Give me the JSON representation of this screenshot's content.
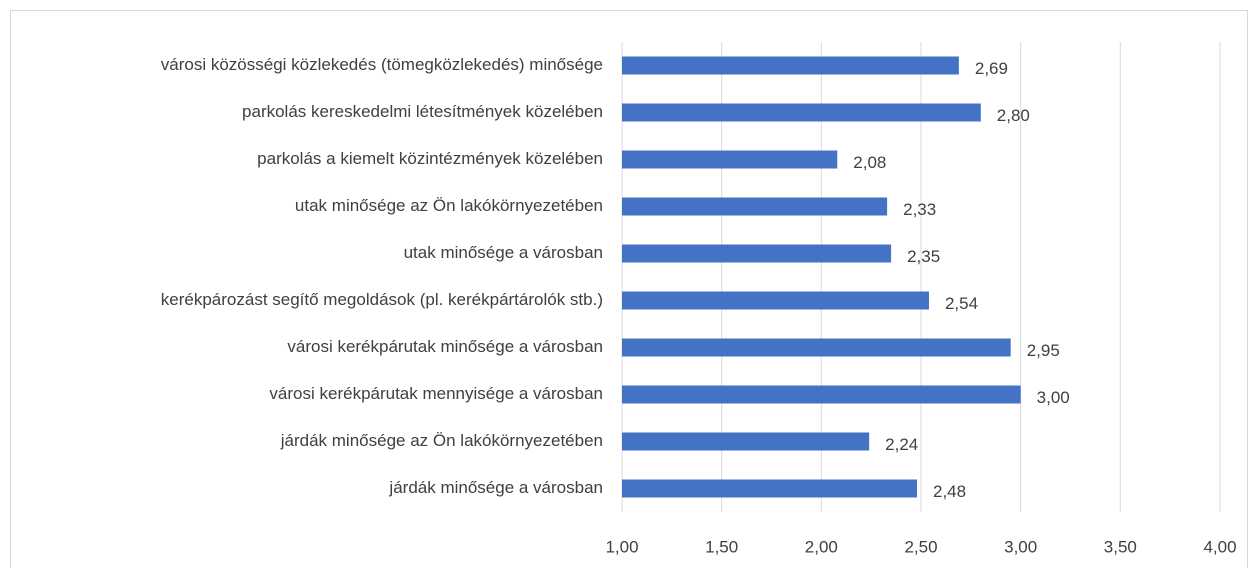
{
  "chart_data": {
    "type": "barh",
    "categories": [
      "városi közösségi közlekedés (tömegközlekedés) minősége",
      "parkolás kereskedelmi létesítmények közelében",
      "parkolás a kiemelt közintézmények közelében",
      "utak minősége az Ön lakókörnyezetében",
      "utak minősége a városban",
      "kerékpározást segítő megoldások (pl. kerékpártárolók stb.)",
      "városi kerékpárutak minősége a városban",
      "városi kerékpárutak mennyisége a városban",
      "járdák minősége az Ön lakókörnyezetében",
      "járdák minősége a városban"
    ],
    "values": [
      2.69,
      2.8,
      2.08,
      2.33,
      2.35,
      2.54,
      2.95,
      3.0,
      2.24,
      2.48
    ],
    "value_labels": [
      "2,69",
      "2,80",
      "2,08",
      "2,33",
      "2,35",
      "2,54",
      "2,95",
      "3,00",
      "2,24",
      "2,48"
    ],
    "color": "#4472c4",
    "xlim": [
      1,
      4
    ],
    "xticks": [
      {
        "value": 1,
        "label": "1,00"
      },
      {
        "value": 1.5,
        "label": "1,50"
      },
      {
        "value": 2,
        "label": "2,00"
      },
      {
        "value": 2.5,
        "label": "2,50"
      },
      {
        "value": 3,
        "label": "3,00"
      },
      {
        "value": 3.5,
        "label": "3,50"
      },
      {
        "value": 4,
        "label": "4,00"
      }
    ],
    "grid": true
  }
}
